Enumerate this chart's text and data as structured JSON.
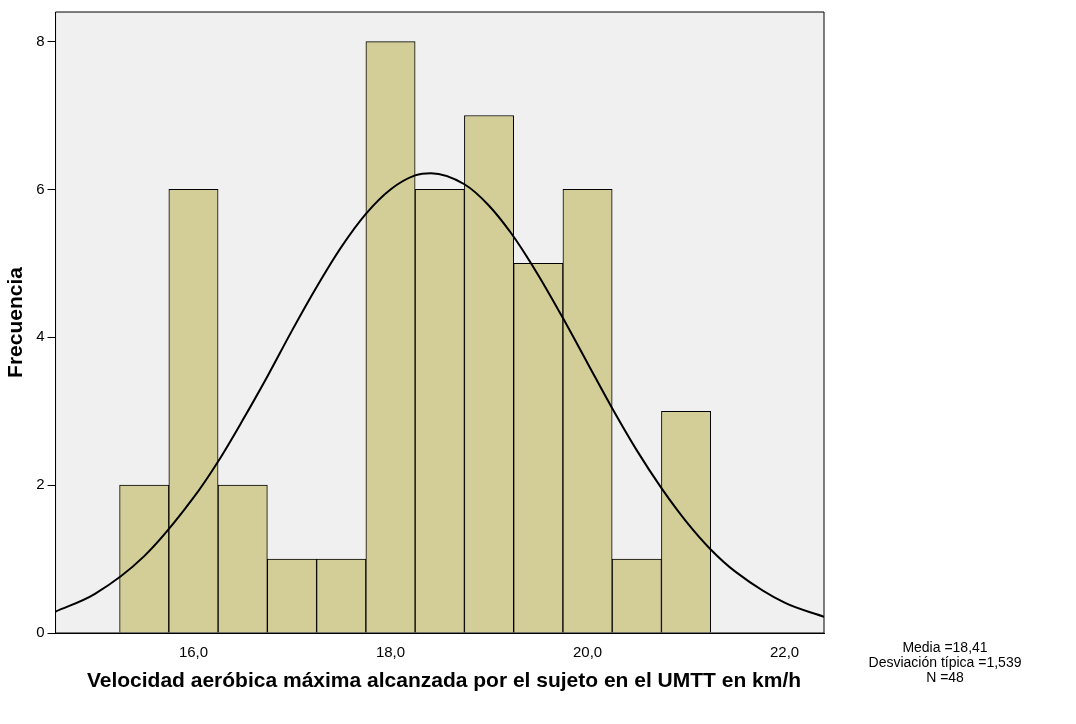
{
  "chart_data": {
    "type": "histogram",
    "xlabel": "Velocidad aeróbica máxima alcanzada por el sujeto en el UMTT en km/h",
    "ylabel": "Frecuencia",
    "bins": [
      15.25,
      15.75,
      16.25,
      16.75,
      17.25,
      17.75,
      18.25,
      18.75,
      19.25,
      19.75,
      20.25,
      20.75,
      21.25
    ],
    "values": [
      2,
      6,
      2,
      1,
      1,
      8,
      6,
      7,
      5,
      6,
      1,
      3
    ],
    "color": "#d3ce97",
    "series": [
      {
        "type": "line",
        "color": "#000000",
        "x": [
          14.6,
          15.0,
          15.5,
          16.0,
          16.25,
          16.5,
          16.75,
          17.0,
          17.25,
          17.5,
          17.75,
          18.0,
          18.25,
          18.41,
          18.75,
          19.0,
          19.25,
          19.5,
          19.75,
          20.0,
          20.25,
          20.5,
          20.75,
          21.0,
          21.25,
          21.5,
          22.0,
          22.4
        ],
        "values": [
          0.29,
          0.53,
          1.04,
          1.83,
          2.32,
          2.88,
          3.47,
          4.09,
          4.68,
          5.22,
          5.67,
          6.0,
          6.19,
          6.22,
          6.07,
          5.78,
          5.36,
          4.84,
          4.26,
          3.65,
          3.04,
          2.47,
          1.96,
          1.51,
          1.13,
          0.83,
          0.41,
          0.22
        ]
      }
    ],
    "xlim": [
      14.6,
      22.4
    ],
    "xticks": [
      {
        "value": 16,
        "label": "16,0"
      },
      {
        "value": 18,
        "label": "18,0"
      },
      {
        "value": 20,
        "label": "20,0"
      },
      {
        "value": 22,
        "label": "22,0"
      }
    ],
    "ylim": [
      0,
      8.4
    ],
    "yticks": [
      0,
      2,
      4,
      6,
      8
    ],
    "grid": false,
    "legend": false,
    "annotations": [
      "Media =18,41",
      "Desviación típica =1,539",
      "N =48"
    ]
  }
}
